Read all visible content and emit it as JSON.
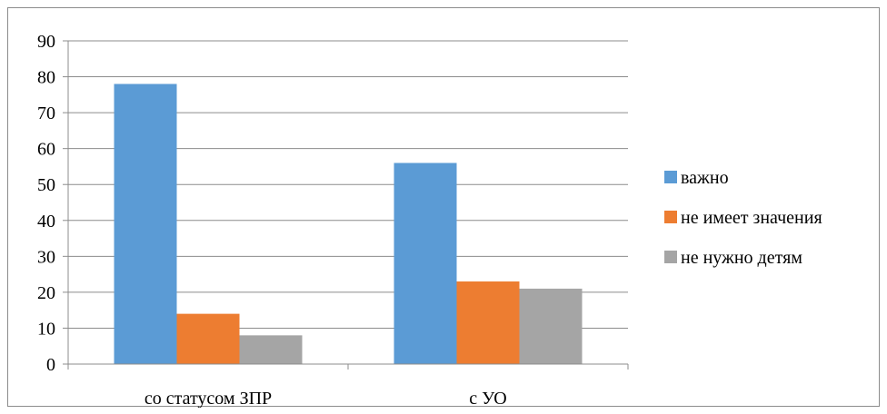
{
  "chart_data": {
    "type": "bar",
    "title": "",
    "xlabel": "",
    "ylabel": "",
    "ylim": [
      0,
      90
    ],
    "ytick_step": 10,
    "grid": true,
    "legend_position": "right",
    "categories": [
      "со статусом ЗПР",
      "с УО"
    ],
    "series": [
      {
        "name": "важно",
        "color": "#5b9bd5",
        "values": [
          78,
          56
        ]
      },
      {
        "name": "не имеет значения",
        "color": "#ed7d31",
        "values": [
          14,
          23
        ]
      },
      {
        "name": "не нужно детям",
        "color": "#a5a5a5",
        "values": [
          8,
          21
        ]
      }
    ]
  }
}
